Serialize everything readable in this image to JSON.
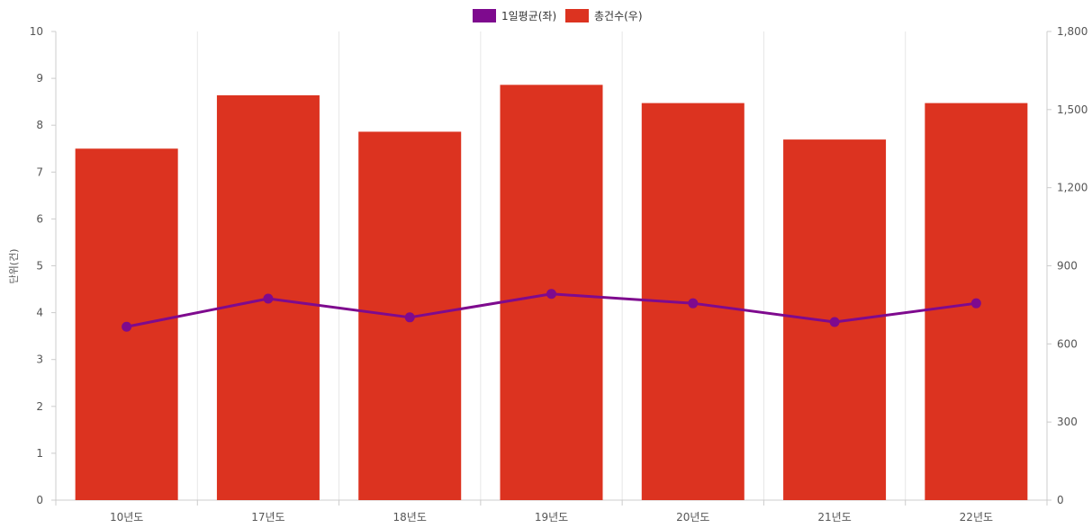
{
  "chart_data": {
    "type": "bar",
    "categories": [
      "10년도",
      "17년도",
      "18년도",
      "19년도",
      "20년도",
      "21년도",
      "22년도"
    ],
    "series": [
      {
        "name": "총건수(우)",
        "type": "bar",
        "axis": "right",
        "color": "#dc3320",
        "values": [
          1350,
          1555,
          1415,
          1595,
          1525,
          1385,
          1525
        ]
      },
      {
        "name": "1일평균(좌)",
        "type": "line",
        "axis": "left",
        "color": "#7e0a8e",
        "values": [
          3.7,
          4.3,
          3.9,
          4.4,
          4.2,
          3.8,
          4.2
        ]
      }
    ],
    "ylabel": "단위(건)",
    "ylim_left": [
      0,
      10
    ],
    "yticks_left": [
      "0",
      "1",
      "2",
      "3",
      "4",
      "5",
      "6",
      "7",
      "8",
      "9",
      "10"
    ],
    "ylim_right": [
      0,
      1800
    ],
    "yticks_right": [
      "0",
      "300",
      "600",
      "900",
      "1,200",
      "1,500",
      "1,800"
    ],
    "legend_position": "top-center",
    "grid": "vertical"
  }
}
